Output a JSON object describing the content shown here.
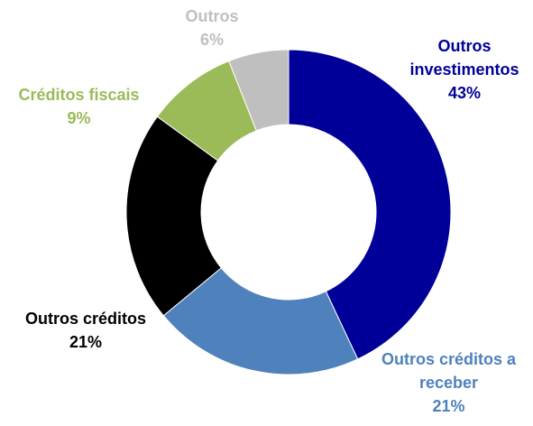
{
  "chart_data": {
    "type": "donut",
    "categories": [
      "Outros investimentos",
      "Outros créditos a receber",
      "Outros créditos",
      "Créditos fiscais",
      "Outros"
    ],
    "values": [
      43,
      21,
      21,
      9,
      6
    ],
    "value_labels": [
      "43%",
      "21%",
      "21%",
      "9%",
      "6%"
    ],
    "colors": [
      "#000099",
      "#4f81bd",
      "#000000",
      "#9bbb59",
      "#bfbfbf"
    ]
  }
}
